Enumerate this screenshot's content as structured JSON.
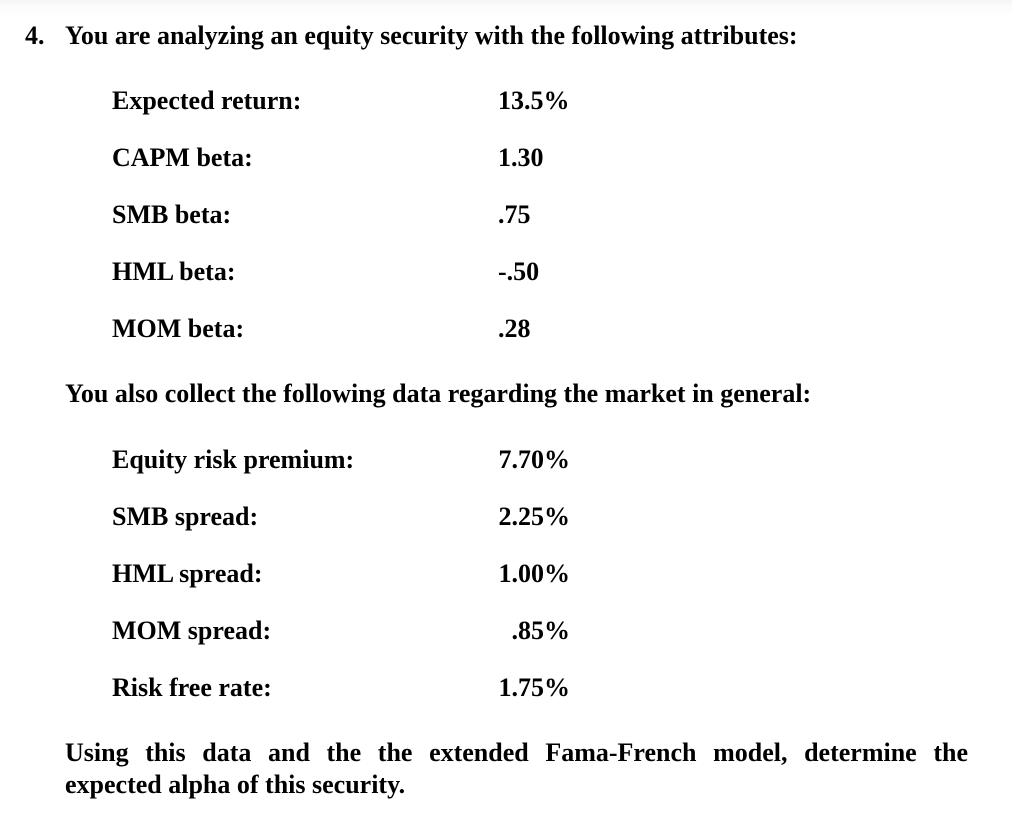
{
  "colors": {
    "background": "#ffffff",
    "text": "#000000",
    "top_edge_shade": "#f4f4f4"
  },
  "question": {
    "number": "4.",
    "intro": "You are analyzing an equity security with the following attributes:",
    "security_attributes": {
      "rows": [
        {
          "label": "Expected return:",
          "value": "13.5%"
        },
        {
          "label": "CAPM beta:",
          "value": "1.30"
        },
        {
          "label": "SMB beta:",
          "value": ".75"
        },
        {
          "label": "HML beta:",
          "value": "-.50"
        },
        {
          "label": "MOM beta:",
          "value": ".28"
        }
      ]
    },
    "market_intro": "You also collect the following data regarding the market in general:",
    "market_data": {
      "rows": [
        {
          "label": "Equity risk premium:",
          "value": "7.70%"
        },
        {
          "label": "SMB spread:",
          "value": "2.25%"
        },
        {
          "label": "HML spread:",
          "value": "1.00%"
        },
        {
          "label": "MOM spread:",
          "value": ".85%"
        },
        {
          "label": "Risk free rate:",
          "value": "1.75%"
        }
      ]
    },
    "task": {
      "line1": "Using this data and the the extended Fama-French model, determine the",
      "line2": "expected alpha of this security."
    }
  }
}
